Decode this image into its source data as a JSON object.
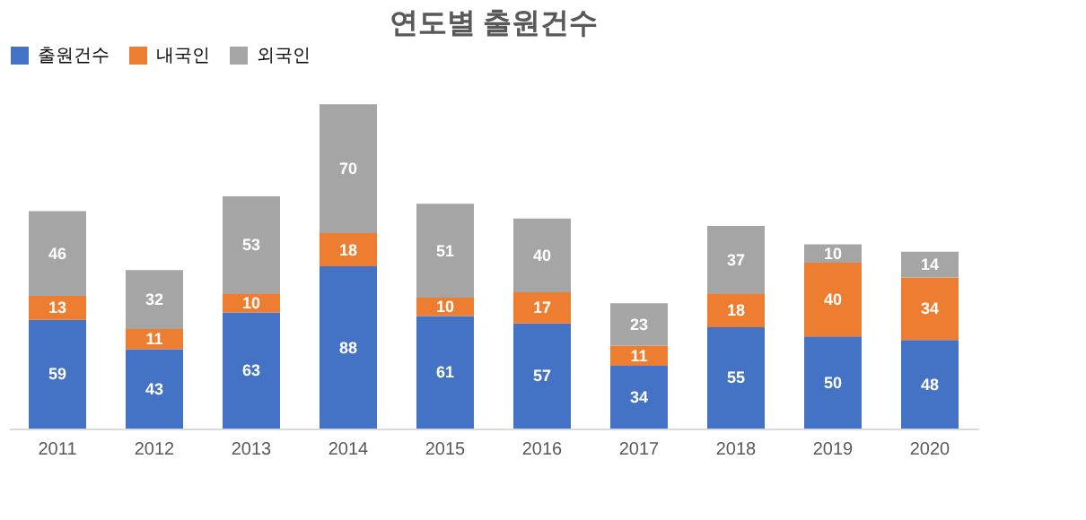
{
  "chart_data": {
    "type": "bar",
    "title": "연도별 출원건수",
    "stacked": true,
    "data_labels": true,
    "legend": "top",
    "grid": false,
    "categories": [
      "2011",
      "2012",
      "2013",
      "2014",
      "2015",
      "2016",
      "2017",
      "2018",
      "2019",
      "2020"
    ],
    "series": [
      {
        "name": "출원건수",
        "color": "#4472c4",
        "values": [
          59,
          43,
          63,
          88,
          61,
          57,
          34,
          55,
          50,
          48
        ]
      },
      {
        "name": "내국인",
        "color": "#ed7d31",
        "values": [
          13,
          11,
          10,
          18,
          10,
          17,
          11,
          18,
          40,
          34
        ]
      },
      {
        "name": "외국인",
        "color": "#a5a5a5",
        "values": [
          46,
          32,
          53,
          70,
          51,
          40,
          23,
          37,
          10,
          14
        ]
      }
    ]
  }
}
